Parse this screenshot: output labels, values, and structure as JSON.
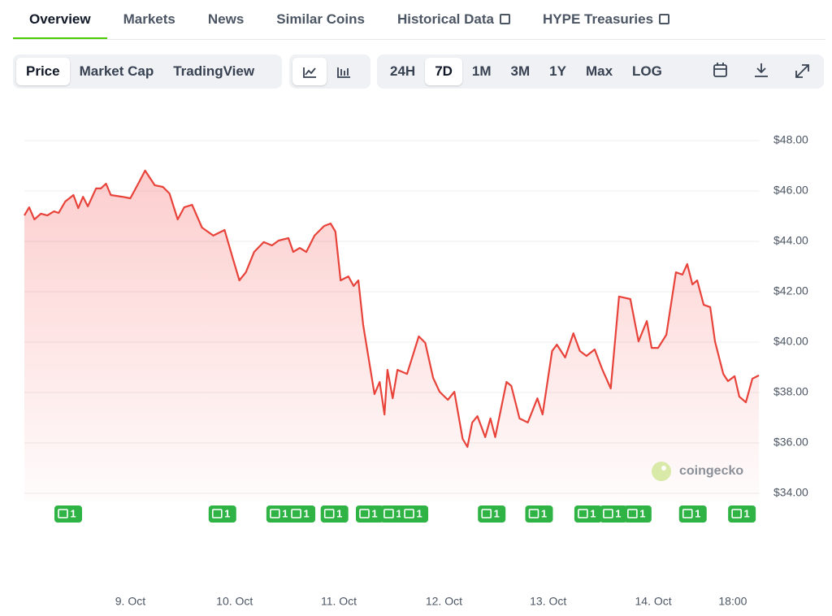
{
  "tabs": [
    {
      "label": "Overview",
      "active": true
    },
    {
      "label": "Markets"
    },
    {
      "label": "News"
    },
    {
      "label": "Similar Coins"
    },
    {
      "label": "Historical Data",
      "external": true
    },
    {
      "label": "HYPE Treasuries",
      "external": true
    }
  ],
  "toolbar": {
    "views": [
      {
        "label": "Price",
        "active": true
      },
      {
        "label": "Market Cap"
      },
      {
        "label": "TradingView"
      }
    ],
    "ranges": [
      {
        "label": "24H"
      },
      {
        "label": "7D",
        "active": true
      },
      {
        "label": "1M"
      },
      {
        "label": "3M"
      },
      {
        "label": "1Y"
      },
      {
        "label": "Max"
      },
      {
        "label": "LOG"
      }
    ]
  },
  "watermark": "coingecko",
  "chart_data": {
    "type": "line",
    "color": "#e8433a",
    "grid": true,
    "x": [
      0,
      1.1,
      2.3,
      3.8,
      5.3,
      6.8,
      7.9,
      9.4,
      11.3,
      12.4,
      13.5,
      14.6,
      16.5,
      17.6,
      18.8,
      19.9,
      22.5,
      24.4,
      26.3,
      27.8,
      30,
      31.9,
      33.4,
      35.3,
      36.8,
      38.6,
      40.9,
      43.5,
      46.1,
      48,
      49.5,
      51,
      52.9,
      55.1,
      57,
      58.5,
      60.8,
      61.9,
      63.4,
      64.9,
      66.8,
      69,
      70.5,
      71.6,
      72.8,
      74.6,
      75.8,
      76.9,
      78,
      80.6,
      81.8,
      82.9,
      83.6,
      84.8,
      85.9,
      88.1,
      90.8,
      92.3,
      94.1,
      95.6,
      97.5,
      99,
      100.9,
      102,
      103.1,
      104.3,
      106.1,
      107.3,
      108.4,
      111,
      112.1,
      114,
      115.9,
      118.1,
      119.3,
      121.5,
      122.6,
      124.5,
      126.4,
      127.9,
      129.4,
      131.3,
      133.1,
      135,
      136.9,
      139.5,
      141.4,
      143.3,
      144.4,
      145.9,
      147.8,
      150,
      151.5,
      152.6,
      153.8,
      154.9,
      156.4,
      157.9,
      159,
      160.9,
      162,
      163.5,
      164.6,
      166.1,
      167.6,
      169.1
    ],
    "values": [
      45.03,
      45.35,
      44.87,
      45.1,
      45.03,
      45.19,
      45.13,
      45.58,
      45.84,
      45.32,
      45.77,
      45.39,
      46.1,
      46.1,
      46.29,
      45.84,
      45.77,
      45.71,
      46.32,
      46.81,
      46.23,
      46.16,
      45.9,
      44.87,
      45.35,
      45.45,
      44.55,
      44.23,
      44.45,
      43.32,
      42.45,
      42.77,
      43.58,
      43.97,
      43.84,
      44.03,
      44.13,
      43.58,
      43.74,
      43.58,
      44.23,
      44.61,
      44.71,
      44.39,
      42.45,
      42.61,
      42.23,
      42.45,
      40.68,
      37.94,
      38.42,
      37.13,
      38.9,
      37.77,
      38.9,
      38.74,
      40.23,
      39.97,
      38.58,
      38.03,
      37.71,
      38.03,
      36.16,
      35.84,
      36.81,
      37.06,
      36.23,
      36.97,
      36.23,
      38.42,
      38.26,
      36.97,
      36.81,
      37.77,
      37.13,
      39.65,
      39.9,
      39.39,
      40.35,
      39.65,
      39.45,
      39.71,
      38.9,
      38.16,
      41.81,
      41.71,
      40.03,
      40.84,
      39.77,
      39.77,
      40.29,
      42.77,
      42.68,
      43.1,
      42.29,
      42.45,
      41.48,
      41.39,
      40.03,
      38.74,
      38.45,
      38.65,
      37.84,
      37.61,
      38.55,
      38.68
    ],
    "xlim": [
      0,
      169.1
    ],
    "xticks": [
      {
        "value": 24.4,
        "label": "9. Oct"
      },
      {
        "value": 48.4,
        "label": "10. Oct"
      },
      {
        "value": 72.4,
        "label": "11. Oct"
      },
      {
        "value": 96.6,
        "label": "12. Oct"
      },
      {
        "value": 120.6,
        "label": "13. Oct"
      },
      {
        "value": 144.8,
        "label": "14. Oct"
      },
      {
        "value": 163.1,
        "label": "18:00"
      }
    ],
    "ylim": [
      34,
      48
    ],
    "yticks": [
      {
        "value": 34,
        "label": "$34.00"
      },
      {
        "value": 36,
        "label": "$36.00"
      },
      {
        "value": 38,
        "label": "$38.00"
      },
      {
        "value": 40,
        "label": "$40.00"
      },
      {
        "value": 42,
        "label": "$42.00"
      },
      {
        "value": 44,
        "label": "$44.00"
      },
      {
        "value": 46,
        "label": "$46.00"
      },
      {
        "value": 48,
        "label": "$48.00"
      }
    ],
    "annotations": [
      {
        "x": 10.1,
        "text": "1"
      },
      {
        "x": 45.6,
        "text": "1"
      },
      {
        "x": 58.9,
        "text": "1"
      },
      {
        "x": 63.8,
        "text": "1"
      },
      {
        "x": 71.4,
        "text": "1"
      },
      {
        "x": 79.5,
        "text": "1"
      },
      {
        "x": 85.1,
        "text": "1"
      },
      {
        "x": 89.8,
        "text": "1"
      },
      {
        "x": 107.6,
        "text": "1"
      },
      {
        "x": 118.5,
        "text": "1"
      },
      {
        "x": 129.8,
        "text": "1"
      },
      {
        "x": 135.6,
        "text": "1"
      },
      {
        "x": 141.2,
        "text": "1"
      },
      {
        "x": 153.9,
        "text": "1"
      },
      {
        "x": 165.2,
        "text": "1"
      }
    ]
  }
}
